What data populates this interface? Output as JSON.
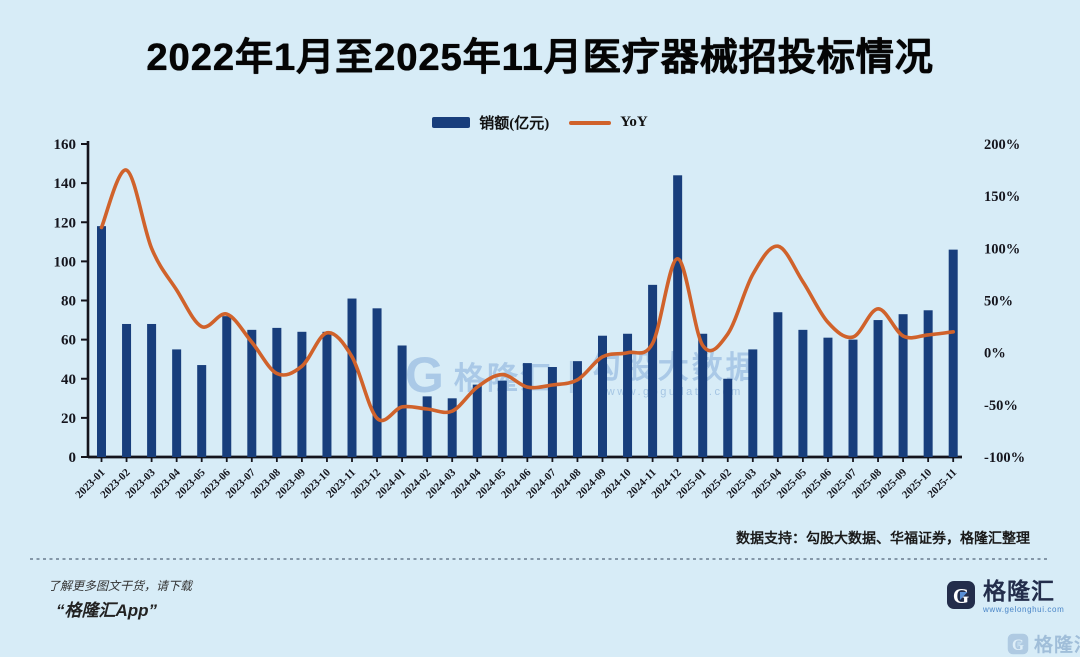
{
  "title": "2022年1月至2025年11月医疗器械招投标情况",
  "legend": {
    "bar_label": "销额(亿元)",
    "line_label": "YoY"
  },
  "chart_data": {
    "type": "bar+line",
    "title": "2022年1月至2025年11月医疗器械招投标情况",
    "categories": [
      "2023-01",
      "2023-02",
      "2023-03",
      "2023-04",
      "2023-05",
      "2023-06",
      "2023-07",
      "2023-08",
      "2023-09",
      "2023-10",
      "2023-11",
      "2023-12",
      "2024-01",
      "2024-02",
      "2024-03",
      "2024-04",
      "2024-05",
      "2024-06",
      "2024-07",
      "2024-08",
      "2024-09",
      "2024-10",
      "2024-11",
      "2024-12",
      "2025-01",
      "2025-02",
      "2025-03",
      "2025-04",
      "2025-05",
      "2025-06",
      "2025-07",
      "2025-08",
      "2025-09",
      "2025-10",
      "2025-11"
    ],
    "series": [
      {
        "name": "销额(亿元)",
        "type": "bar",
        "axis": "left",
        "unit": "亿元",
        "values": [
          118,
          68,
          68,
          55,
          47,
          72,
          65,
          66,
          64,
          64,
          81,
          76,
          57,
          31,
          30,
          37,
          39,
          48,
          46,
          49,
          62,
          63,
          88,
          144,
          63,
          40,
          55,
          74,
          65,
          61,
          60,
          70,
          73,
          75,
          106
        ]
      },
      {
        "name": "YoY",
        "type": "line",
        "axis": "right",
        "unit": "%",
        "values": [
          120,
          175,
          100,
          60,
          25,
          37,
          10,
          -20,
          -13,
          19,
          -4,
          -63,
          -52,
          -54,
          -56,
          -33,
          -21,
          -33,
          -31,
          -26,
          -4,
          0,
          9,
          90,
          7,
          18,
          75,
          102,
          68,
          29,
          15,
          42,
          16,
          17,
          20
        ]
      }
    ],
    "left_axis": {
      "min": 0,
      "max": 160,
      "step": 20,
      "tick_labels": [
        "160",
        "140",
        "120",
        "100",
        "80",
        "60",
        "40",
        "20",
        "0"
      ]
    },
    "right_axis": {
      "min": -100,
      "max": 200,
      "step": 50,
      "tick_labels": [
        "200%",
        "150%",
        "100%",
        "50%",
        "0%",
        "-50%",
        "-100%"
      ]
    },
    "grid": false,
    "legend_position": "top-center"
  },
  "watermark": {
    "glyph": "G",
    "brand": "格隆汇",
    "divider": "|",
    "product": "勾股大数据",
    "url": "www.gogudata.com"
  },
  "footer": {
    "source_note": "数据支持：勾股大数据、华福证券，格隆汇整理",
    "promo_line1": "了解更多图文干货，请下载",
    "promo_line2": "“格隆汇App”",
    "brand_glyph": "G",
    "brand_name": "格隆汇",
    "brand_url": "www.gelonghui.com",
    "corner_brand": "格隆汇"
  },
  "colors": {
    "background": "#d7ecf7",
    "bar": "#183e7c",
    "line": "#d0622b",
    "axis": "#14141c",
    "text": "#111111",
    "watermark": "#73a0d2",
    "logo_navy": "#232d4b",
    "logo_blue": "#5a8fd6",
    "url_blue": "#4a86c8"
  }
}
